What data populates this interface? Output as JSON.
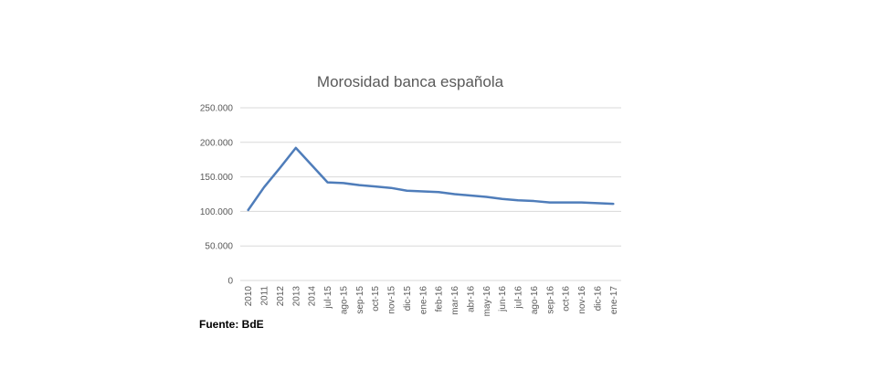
{
  "source": "Fuente: BdE",
  "colors": {
    "line": "#4f7dba",
    "grid": "#d9d9d9",
    "text": "#595959"
  },
  "chart_data": {
    "type": "line",
    "title": "Morosidad banca española",
    "xlabel": "",
    "ylabel": "",
    "ylim": [
      0,
      250000
    ],
    "yticks": [
      "0",
      "50.000",
      "100.000",
      "150.000",
      "200.000",
      "250.000"
    ],
    "grid": true,
    "legend": "none",
    "categories": [
      "2010",
      "2011",
      "2012",
      "2013",
      "2014",
      "jul-15",
      "ago-15",
      "sep-15",
      "oct-15",
      "nov-15",
      "dic-15",
      "ene-16",
      "feb-16",
      "mar-16",
      "abr-16",
      "may-16",
      "jun-16",
      "jul-16",
      "ago-16",
      "sep-16",
      "oct-16",
      "nov-16",
      "dic-16",
      "ene-17"
    ],
    "series": [
      {
        "values": [
          102000,
          135000,
          163000,
          192000,
          167000,
          142000,
          141000,
          138000,
          136000,
          134000,
          130000,
          129000,
          128000,
          125000,
          123000,
          121000,
          118000,
          116000,
          115000,
          113000,
          113000,
          113000,
          112000,
          111000
        ]
      }
    ]
  }
}
